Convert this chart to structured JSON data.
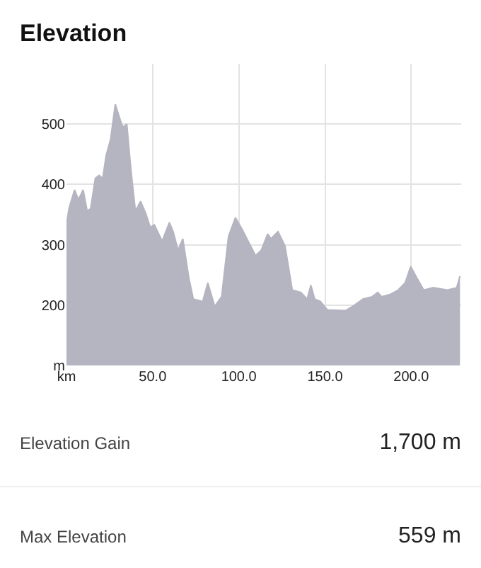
{
  "chart_data": {
    "type": "area",
    "title": "Elevation",
    "x": [
      0,
      1.4,
      4.7,
      6.9,
      9.7,
      12,
      14,
      16.7,
      18.9,
      21,
      23,
      25.6,
      28.3,
      32,
      33,
      35,
      37.5,
      40,
      43,
      46,
      48.6,
      51,
      55.5,
      59.7,
      62,
      64.7,
      67.5,
      71,
      73.6,
      79,
      82,
      86,
      90,
      94,
      98,
      102,
      109.7,
      113,
      116.7,
      118.6,
      122.7,
      126.8,
      131,
      136,
      139.6,
      141.8,
      144,
      147.3,
      151.4,
      162,
      166,
      172,
      177.3,
      180.6,
      182.8,
      188,
      192.4,
      196.5,
      199.7,
      203.3,
      207.3,
      212.8,
      221,
      226.4,
      228.3
    ],
    "series": [
      {
        "color": "#b5b4c1",
        "values": [
          333,
          360,
          391,
          375,
          391,
          356,
          360,
          410,
          415,
          410,
          448,
          475,
          533,
          500,
          495,
          500,
          421,
          356,
          372,
          352,
          329,
          333,
          306,
          337,
          321,
          291,
          310,
          245,
          210,
          206,
          237,
          198,
          214,
          314,
          345,
          325,
          282,
          291,
          318,
          310,
          322,
          298,
          225,
          221,
          210,
          233,
          210,
          206,
          192,
          191,
          198,
          210,
          214,
          221,
          214,
          218,
          225,
          237,
          264,
          245,
          225,
          229,
          225,
          229,
          248
        ]
      }
    ],
    "xlim": [
      0,
      229
    ],
    "ylim": [
      100,
      600
    ],
    "xticks": [
      {
        "value": 0,
        "label": "km"
      },
      {
        "value": 50,
        "label": "50.0"
      },
      {
        "value": 100,
        "label": "100.0"
      },
      {
        "value": 150,
        "label": "150.0"
      },
      {
        "value": 200,
        "label": "200.0"
      }
    ],
    "yticks": [
      {
        "value": 100,
        "label": "m"
      },
      200,
      300,
      400,
      500
    ],
    "grid": true,
    "legend": false,
    "marker": "none",
    "line_style": "solid",
    "annotations": [
      "Elevation Gain",
      "1,700 m",
      "Max Elevation",
      "559 m"
    ]
  }
}
